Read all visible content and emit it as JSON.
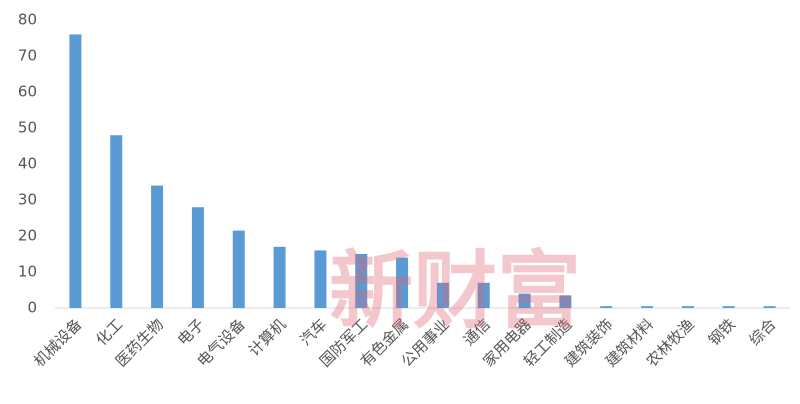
{
  "chart_data": {
    "type": "bar",
    "categories": [
      "机械设备",
      "化工",
      "医药生物",
      "电子",
      "电气设备",
      "计算机",
      "汽车",
      "国防军工",
      "有色金属",
      "公用事业",
      "通信",
      "家用电器",
      "轻工制造",
      "建筑装饰",
      "建筑材料",
      "农林牧渔",
      "钢铁",
      "综合"
    ],
    "values": [
      76,
      48,
      34,
      28,
      21.5,
      17,
      16,
      15,
      14,
      7,
      7,
      4,
      3.5,
      0.5,
      0.5,
      0.5,
      0.5,
      0.5
    ],
    "color": "#5b9bd5",
    "ylim": [
      0,
      80
    ],
    "yticks": [
      0,
      10,
      20,
      30,
      40,
      50,
      60,
      70,
      80
    ],
    "grid": false,
    "watermark": "新财富"
  }
}
